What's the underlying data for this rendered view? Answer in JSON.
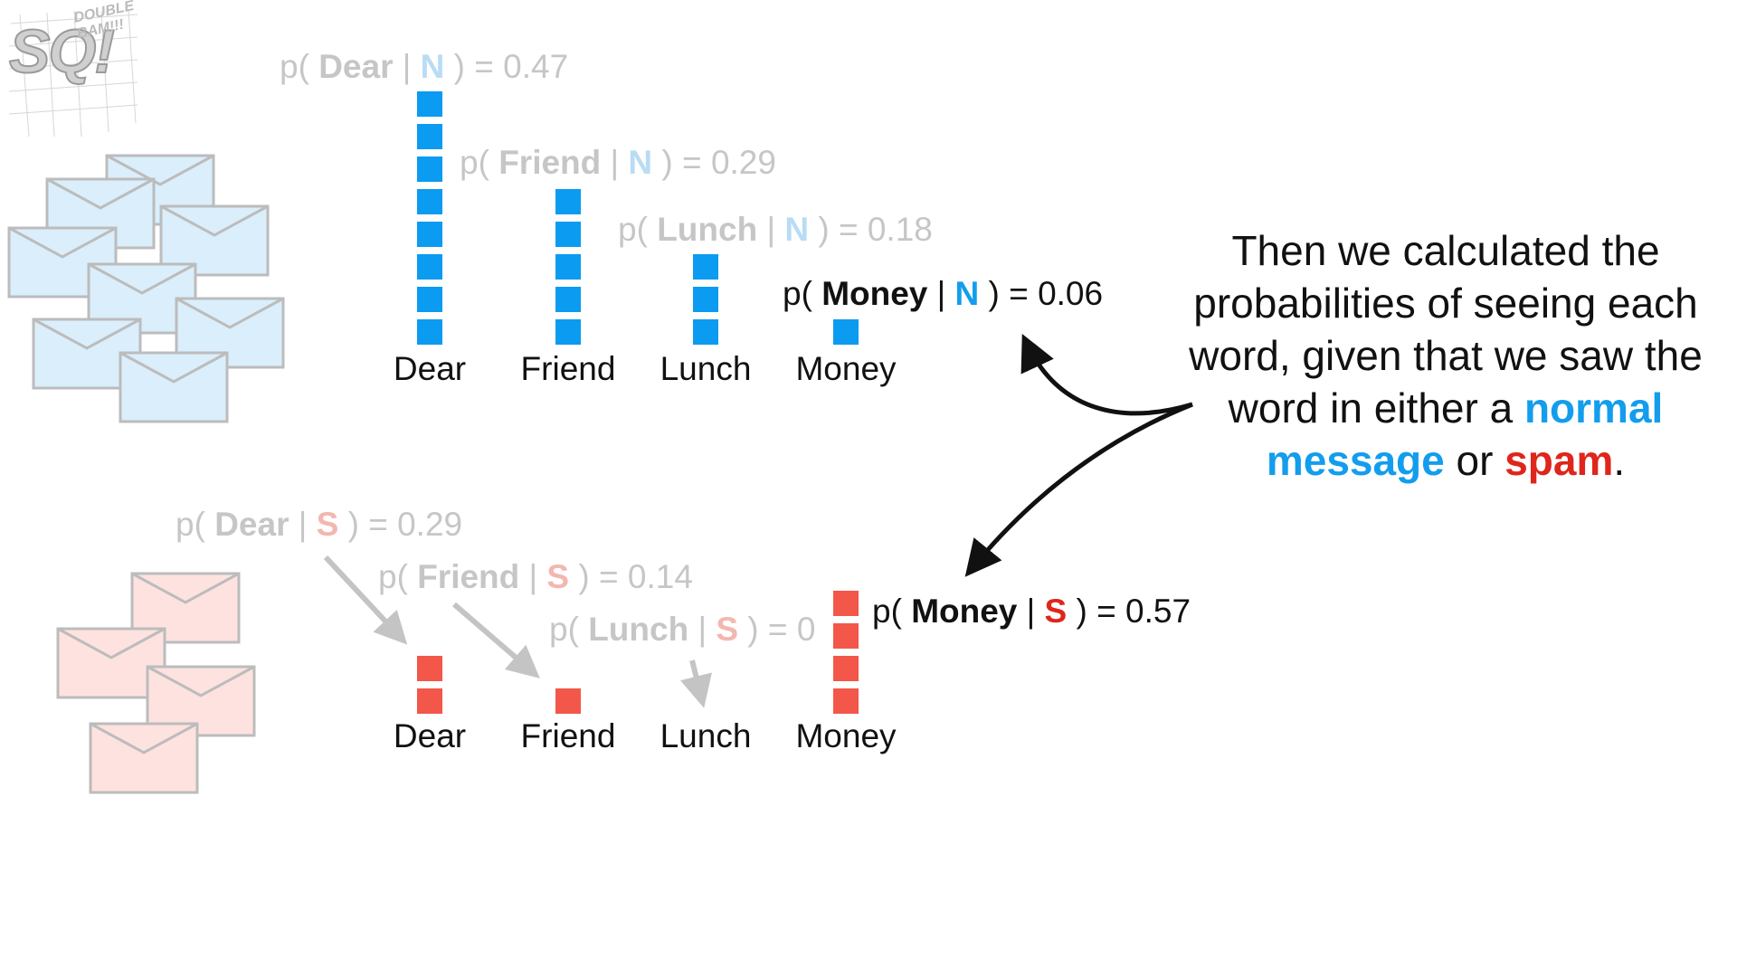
{
  "logo": {
    "main": "SQ!",
    "tagline": "DOUBLE BAM!!!"
  },
  "normal": {
    "given": "N",
    "probs": [
      {
        "word": "Dear",
        "value": "0.47",
        "blocks": 8,
        "highlight": false
      },
      {
        "word": "Friend",
        "value": "0.29",
        "blocks": 5,
        "highlight": false
      },
      {
        "word": "Lunch",
        "value": "0.18",
        "blocks": 3,
        "highlight": false
      },
      {
        "word": "Money",
        "value": "0.06",
        "blocks": 1,
        "highlight": true
      }
    ]
  },
  "spam": {
    "given": "S",
    "probs": [
      {
        "word": "Dear",
        "value": "0.29",
        "blocks": 2,
        "highlight": false
      },
      {
        "word": "Friend",
        "value": "0.14",
        "blocks": 1,
        "highlight": false
      },
      {
        "word": "Lunch",
        "value": "0",
        "blocks": 0,
        "highlight": false
      },
      {
        "word": "Money",
        "value": "0.57",
        "blocks": 4,
        "highlight": true
      }
    ]
  },
  "explanation": {
    "lines": [
      "Then we calculated the",
      "probabilities of seeing each",
      "word, given that we saw the",
      "word in either a"
    ],
    "normal_word": "normal",
    "message_word": "message",
    "or_word": "or",
    "spam_word": "spam",
    "period": "."
  },
  "colors": {
    "normal_accent": "#139ded",
    "spam_accent": "#e0251b",
    "normal_block": "#0b9bf0",
    "spam_block": "#f25749",
    "dim_text": "#c6c6c6"
  }
}
